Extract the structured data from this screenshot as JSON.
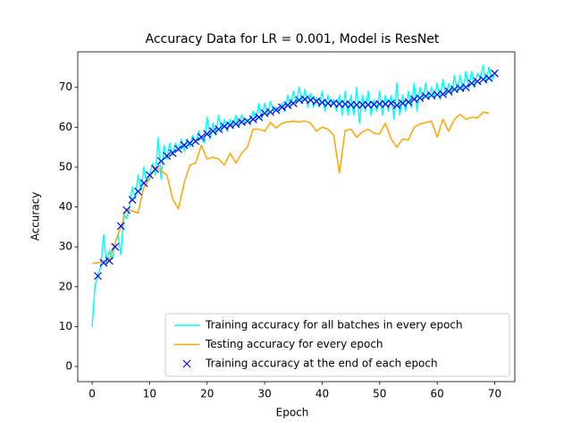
{
  "chart_data": {
    "type": "line",
    "title": "Accuracy Data for LR = 0.001, Model is ResNet",
    "x_label": "Epoch",
    "y_label": "Accuracy",
    "xlim": [
      -2.5,
      73.5
    ],
    "ylim": [
      -3.8,
      78.9
    ],
    "xticks": [
      0,
      10,
      20,
      30,
      40,
      50,
      60,
      70
    ],
    "yticks": [
      0,
      10,
      20,
      30,
      40,
      50,
      60,
      70
    ],
    "legend": "lower right",
    "series": [
      {
        "name": "Training accuracy for all batches in every epoch",
        "color": "#00ffff",
        "marker": "none",
        "x": [
          0,
          0.5,
          1,
          1.5,
          2,
          2.5,
          3,
          3.5,
          4,
          4.5,
          5,
          5.5,
          6,
          6.5,
          7,
          7.5,
          8,
          8.5,
          9,
          9.5,
          10,
          10.5,
          11,
          11.5,
          12,
          12.5,
          13,
          13.5,
          14,
          14.5,
          15,
          15.5,
          16,
          16.5,
          17,
          17.5,
          18,
          18.5,
          19,
          19.5,
          20,
          20.5,
          21,
          21.5,
          22,
          22.5,
          23,
          23.5,
          24,
          24.5,
          25,
          25.5,
          26,
          26.5,
          27,
          27.5,
          28,
          28.5,
          29,
          29.5,
          30,
          30.5,
          31,
          31.5,
          32,
          32.5,
          33,
          33.5,
          34,
          34.5,
          35,
          35.5,
          36,
          36.5,
          37,
          37.5,
          38,
          38.5,
          39,
          39.5,
          40,
          40.5,
          41,
          41.5,
          42,
          42.5,
          43,
          43.5,
          44,
          44.5,
          45,
          45.5,
          46,
          46.5,
          47,
          47.5,
          48,
          48.5,
          49,
          49.5,
          50,
          50.5,
          51,
          51.5,
          52,
          52.5,
          53,
          53.5,
          54,
          54.5,
          55,
          55.5,
          56,
          56.5,
          57,
          57.5,
          58,
          58.5,
          59,
          59.5,
          60,
          60.5,
          61,
          61.5,
          62,
          62.5,
          63,
          63.5,
          64,
          64.5,
          65,
          65.5,
          66,
          66.5,
          67,
          67.5,
          68,
          68.5,
          69,
          69.5,
          70
        ],
        "values": [
          10,
          20,
          23,
          25,
          33,
          26,
          29,
          27,
          31,
          33,
          28,
          38,
          37,
          40,
          45,
          42,
          48,
          44,
          50,
          46,
          48,
          51,
          48,
          57.5,
          47,
          55.5,
          52,
          56,
          53,
          56,
          54,
          57,
          54,
          57,
          55,
          58,
          56,
          59,
          57,
          56,
          62.5,
          57,
          61,
          58,
          63,
          59,
          62,
          59,
          62,
          60,
          63,
          60,
          63,
          61,
          62,
          61,
          64,
          62,
          66,
          62,
          66,
          63,
          66.5,
          64,
          65,
          64,
          66,
          64,
          68,
          65,
          69,
          66,
          70,
          66,
          69.5,
          65,
          68.5,
          65,
          67.5,
          65,
          69,
          64,
          68,
          65,
          67,
          64,
          68,
          63,
          69,
          63,
          68,
          63,
          70,
          61,
          68,
          64,
          69,
          63,
          67,
          64,
          69,
          63,
          68,
          64,
          68,
          62,
          71,
          63,
          68,
          64,
          69,
          65,
          71,
          64,
          70,
          67,
          71,
          67,
          70,
          67,
          71,
          67,
          72,
          68,
          71,
          68,
          73,
          69,
          73,
          69,
          74,
          70,
          74,
          70,
          73.5,
          72,
          75.5,
          71,
          75,
          72,
          73
        ]
      },
      {
        "name": "Testing accuracy for every epoch",
        "color": "#ffa500",
        "marker": "none",
        "x": [
          0,
          1,
          2,
          3,
          4,
          5,
          6,
          7,
          8,
          9,
          10,
          11,
          12,
          13,
          14,
          15,
          16,
          17,
          18,
          19,
          20,
          21,
          22,
          23,
          24,
          25,
          26,
          27,
          28,
          29,
          30,
          31,
          32,
          33,
          34,
          35,
          36,
          37,
          38,
          39,
          40,
          41,
          42,
          43,
          44,
          45,
          46,
          47,
          48,
          49,
          50,
          51,
          52,
          53,
          54,
          55,
          56,
          57,
          58,
          59,
          60,
          61,
          62,
          63,
          64,
          65,
          66,
          67,
          68,
          69
        ],
        "values": [
          25.8,
          26,
          26.5,
          27,
          31,
          35,
          39.5,
          39,
          38.5,
          45,
          47,
          50,
          49,
          48,
          42,
          39.5,
          46,
          50.5,
          51,
          55.5,
          52,
          52.5,
          52,
          50.5,
          53.5,
          51,
          53.5,
          55,
          59.5,
          59.5,
          59,
          61.2,
          59.8,
          61,
          61.3,
          61.5,
          61.3,
          61.6,
          61,
          59,
          60,
          59.5,
          58,
          48.5,
          59.2,
          59.5,
          57.5,
          58.8,
          59.5,
          58.5,
          58.3,
          61,
          57,
          55,
          57,
          56.8,
          60,
          60.8,
          61.2,
          61.5,
          57.5,
          62,
          59,
          62,
          63.2,
          62,
          62.5,
          62.3,
          63.8,
          63.5
        ]
      },
      {
        "name": "Training accuracy at the end of each epoch",
        "color": "#0000ff",
        "marker": "x",
        "x": [
          1,
          2,
          3,
          4,
          5,
          6,
          7,
          8,
          9,
          10,
          11,
          12,
          13,
          14,
          15,
          16,
          17,
          18,
          19,
          20,
          21,
          22,
          23,
          24,
          25,
          26,
          27,
          28,
          29,
          30,
          31,
          32,
          33,
          34,
          35,
          36,
          37,
          38,
          39,
          40,
          41,
          42,
          43,
          44,
          45,
          46,
          47,
          48,
          49,
          50,
          51,
          52,
          53,
          54,
          55,
          56,
          57,
          58,
          59,
          60,
          61,
          62,
          63,
          64,
          65,
          66,
          67,
          68,
          69,
          70
        ],
        "values": [
          22.7,
          26,
          26.5,
          30,
          35.2,
          39.2,
          41.8,
          43.9,
          46,
          48,
          49.5,
          51.5,
          52.8,
          53.5,
          54.5,
          55.5,
          56,
          56.5,
          57.5,
          58.3,
          59,
          59.5,
          60.2,
          60.5,
          60.8,
          61.3,
          61.5,
          62,
          62.5,
          63.5,
          63.8,
          64.3,
          65,
          65.5,
          66,
          66.8,
          67,
          66.8,
          66.5,
          66.2,
          66,
          66,
          65.8,
          65.8,
          65.6,
          65.6,
          65.6,
          65.6,
          65.7,
          65.8,
          65.8,
          66,
          65.5,
          66,
          66.3,
          67,
          67.3,
          67.8,
          68,
          68.2,
          68.3,
          69,
          69.5,
          69.8,
          70,
          71,
          71.5,
          72,
          72.3,
          73.5
        ]
      }
    ]
  }
}
